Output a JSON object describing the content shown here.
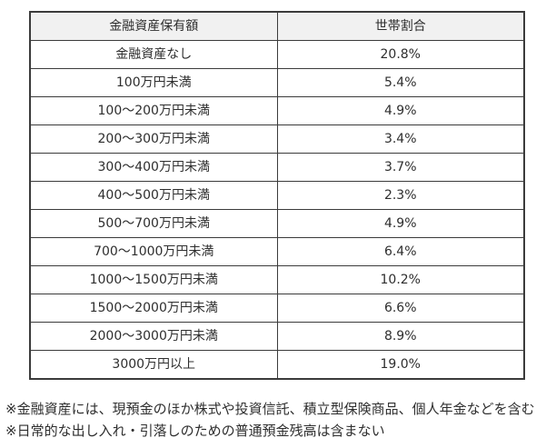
{
  "table": {
    "headers": {
      "label": "金融資産保有額",
      "value": "世帯割合"
    },
    "rows": [
      {
        "label": "金融資産なし",
        "value": "20.8%"
      },
      {
        "label": "100万円未満",
        "value": "5.4%"
      },
      {
        "label": "100〜200万円未満",
        "value": "4.9%"
      },
      {
        "label": "200〜300万円未満",
        "value": "3.4%"
      },
      {
        "label": "300〜400万円未満",
        "value": "3.7%"
      },
      {
        "label": "400〜500万円未満",
        "value": "2.3%"
      },
      {
        "label": "500〜700万円未満",
        "value": "4.9%"
      },
      {
        "label": "700〜1000万円未満",
        "value": "6.4%"
      },
      {
        "label": "1000〜1500万円未満",
        "value": "10.2%"
      },
      {
        "label": "1500〜2000万円未満",
        "value": "6.6%"
      },
      {
        "label": "2000〜3000万円未満",
        "value": "8.9%"
      },
      {
        "label": "3000万円以上",
        "value": "19.0%"
      }
    ]
  },
  "footnotes": [
    "※金融資産には、現預金のほか株式や投資信託、積立型保険商品、個人年金などを含む",
    "※日常的な出し入れ・引落しのための普通預金残高は含まない"
  ],
  "colors": {
    "header_bg": "#f1f1f1",
    "border": "#3b3b3b",
    "text": "#2e2e2e"
  }
}
